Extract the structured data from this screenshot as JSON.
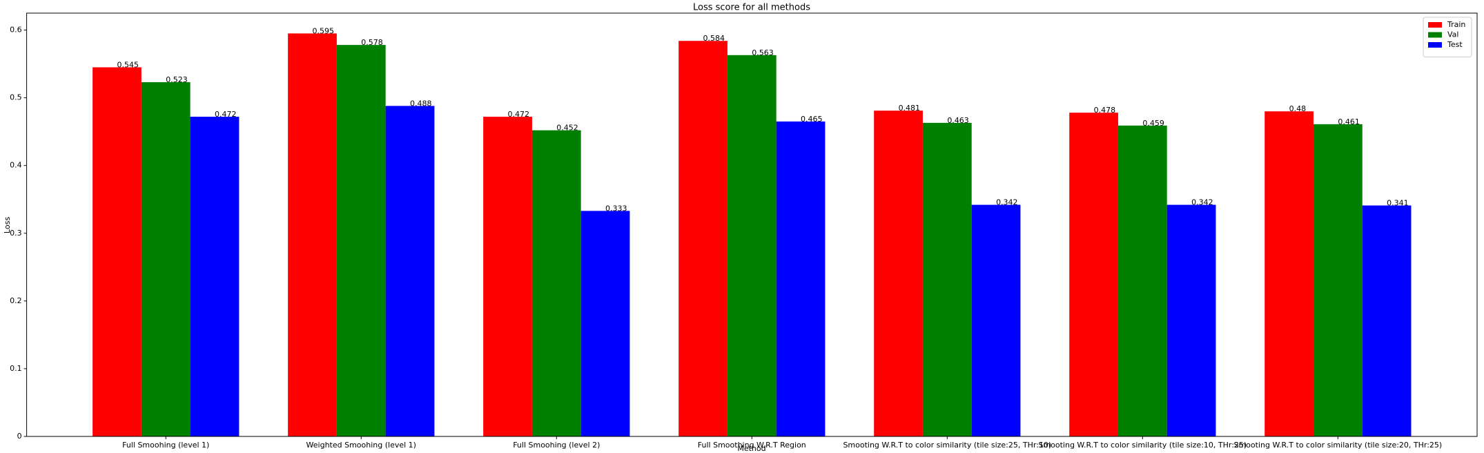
{
  "chart_data": {
    "type": "bar",
    "title": "Loss score for all methods",
    "x_label": "Method",
    "y_label": "Loss",
    "categories": [
      "Full Smoohing (level 1)",
      "Weighted Smoohing (level 1)",
      "Full Smoohing (level 2)",
      "Full Smoothing W.R.T Region",
      "Smooting W.R.T to color similarity (tile size:25, THr:10)",
      "Smooting W.R.T to color similarity (tile size:10, THr:25)",
      "Smooting W.R.T to color similarity (tile size:20, THr:25)"
    ],
    "series": [
      {
        "name": "Train",
        "color": "#ff0000",
        "values": [
          0.545,
          0.595,
          0.472,
          0.584,
          0.481,
          0.478,
          0.48
        ]
      },
      {
        "name": "Val",
        "color": "#008000",
        "values": [
          0.523,
          0.578,
          0.452,
          0.563,
          0.463,
          0.459,
          0.461
        ]
      },
      {
        "name": "Test",
        "color": "#0000ff",
        "values": [
          0.472,
          0.488,
          0.333,
          0.465,
          0.342,
          0.342,
          0.341
        ]
      }
    ],
    "ylim": [
      0,
      0.625
    ],
    "yticks": [
      0.0,
      0.1,
      0.2,
      0.3,
      0.4,
      0.5,
      0.6
    ],
    "legend": "upper right"
  }
}
